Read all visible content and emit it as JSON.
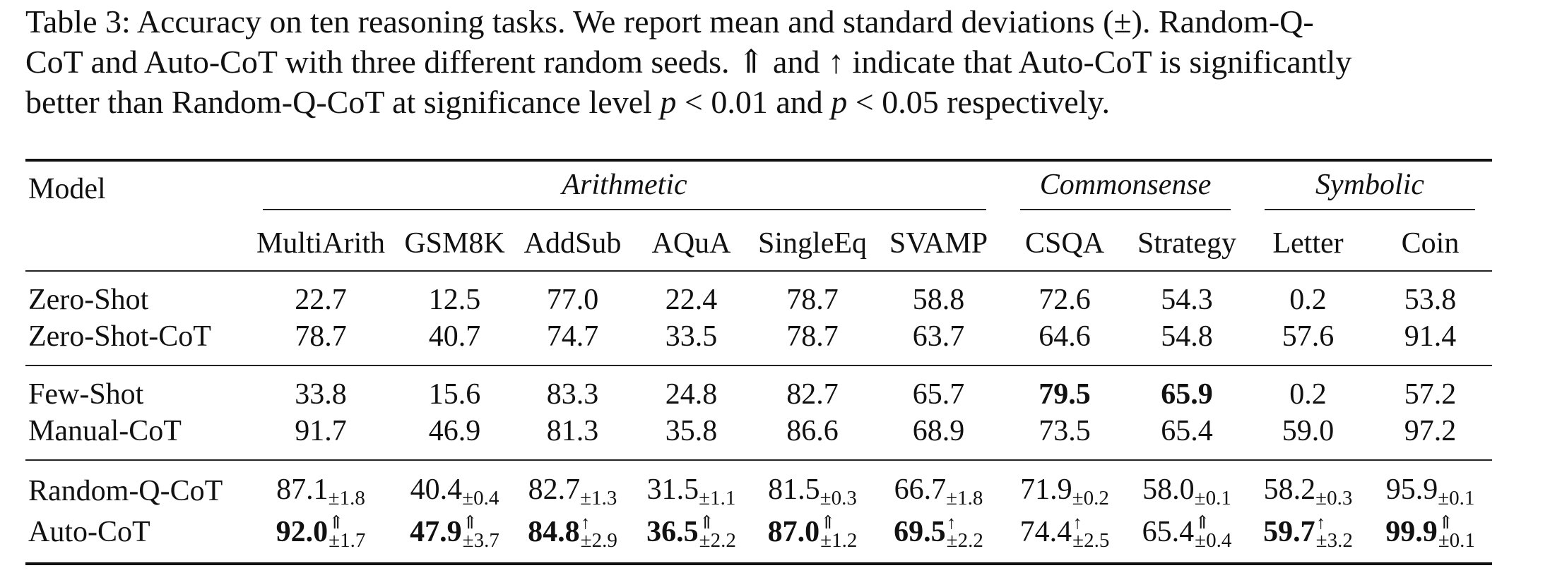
{
  "caption": {
    "line1": "Table 3: Accuracy on ten reasoning tasks. We report mean and standard deviations (±). Random-Q-",
    "line2": "CoT and Auto-CoT with three different random seeds. ⇑ and ↑ indicate that Auto-CoT is significantly",
    "line3_a": "better than Random-Q-CoT at significance level ",
    "p1_var": "p",
    "p1_rest": " < 0.01 and ",
    "p2_var": "p",
    "p2_rest": " < 0.05 respectively."
  },
  "table": {
    "model_header": "Model",
    "groups": [
      "Arithmetic",
      "Commonsense",
      "Symbolic"
    ],
    "columns": [
      "MultiArith",
      "GSM8K",
      "AddSub",
      "AQuA",
      "SingleEq",
      "SVAMP",
      "CSQA",
      "Strategy",
      "Letter",
      "Coin"
    ],
    "sections": [
      [
        {
          "model": "Zero-Shot",
          "values": [
            "22.7",
            "12.5",
            "77.0",
            "22.4",
            "78.7",
            "58.8",
            "72.6",
            "54.3",
            "0.2",
            "53.8"
          ],
          "bold": []
        },
        {
          "model": "Zero-Shot-CoT",
          "values": [
            "78.7",
            "40.7",
            "74.7",
            "33.5",
            "78.7",
            "63.7",
            "64.6",
            "54.8",
            "57.6",
            "91.4"
          ],
          "bold": []
        }
      ],
      [
        {
          "model": "Few-Shot",
          "values": [
            "33.8",
            "15.6",
            "83.3",
            "24.8",
            "82.7",
            "65.7",
            "79.5",
            "65.9",
            "0.2",
            "57.2"
          ],
          "bold": [
            6,
            7
          ]
        },
        {
          "model": "Manual-CoT",
          "values": [
            "91.7",
            "46.9",
            "81.3",
            "35.8",
            "86.6",
            "68.9",
            "73.5",
            "65.4",
            "59.0",
            "97.2"
          ],
          "bold": []
        }
      ]
    ],
    "seed_rows": [
      {
        "model": "Random-Q-CoT",
        "values": [
          "87.1",
          "40.4",
          "82.7",
          "31.5",
          "81.5",
          "66.7",
          "71.9",
          "58.0",
          "58.2",
          "95.9"
        ],
        "std": [
          "±1.8",
          "±0.4",
          "±1.3",
          "±1.1",
          "±0.3",
          "±1.8",
          "±0.2",
          "±0.1",
          "±0.3",
          "±0.1"
        ],
        "sig": [
          "",
          "",
          "",
          "",
          "",
          "",
          "",
          "",
          "",
          ""
        ],
        "bold": []
      },
      {
        "model": "Auto-CoT",
        "values": [
          "92.0",
          "47.9",
          "84.8",
          "36.5",
          "87.0",
          "69.5",
          "74.4",
          "65.4",
          "59.7",
          "99.9"
        ],
        "std": [
          "±1.7",
          "±3.7",
          "±2.9",
          "±2.2",
          "±1.2",
          "±2.2",
          "±2.5",
          "±0.4",
          "±3.2",
          "±0.1"
        ],
        "sig": [
          "⇑",
          "⇑",
          "↑",
          "⇑",
          "⇑",
          "↑",
          "↑",
          "⇑",
          "↑",
          "⇑"
        ],
        "bold": [
          0,
          1,
          2,
          3,
          4,
          5,
          8,
          9
        ]
      }
    ]
  }
}
